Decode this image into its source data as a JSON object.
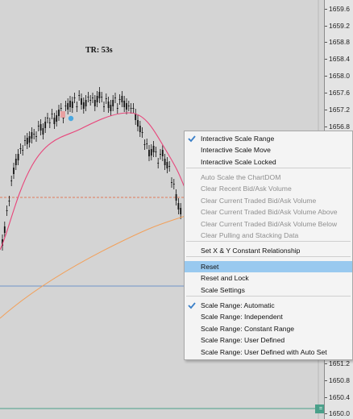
{
  "chart": {
    "timer_label": "TR: 53s",
    "axis_badge": "=",
    "colors": {
      "background": "#d4d4d4",
      "candle": "#111111",
      "ma_fast": "#e8457a",
      "ma_slow": "#f2a05a",
      "dashed_line": "#e07a5a",
      "blue_line": "#6f93c8",
      "green_line": "#4aa08a",
      "grid": "#b9b9b9"
    }
  },
  "price_axis": {
    "ticks": [
      "1659.6",
      "1659.2",
      "1658.8",
      "1658.4",
      "1658.0",
      "1657.6",
      "1657.2",
      "1656.8",
      "1651.2",
      "1650.8",
      "1650.4",
      "1650.0"
    ]
  },
  "context_menu": {
    "items": [
      {
        "label": "Interactive Scale Range",
        "checked": true,
        "disabled": false,
        "highlighted": false
      },
      {
        "label": "Interactive Scale Move",
        "checked": false,
        "disabled": false,
        "highlighted": false
      },
      {
        "label": "Interactive Scale Locked",
        "checked": false,
        "disabled": false,
        "highlighted": false
      },
      {
        "label": "Auto Scale the ChartDOM",
        "checked": false,
        "disabled": true,
        "highlighted": false
      },
      {
        "label": "Clear Recent Bid/Ask Volume",
        "checked": false,
        "disabled": true,
        "highlighted": false
      },
      {
        "label": "Clear Current Traded Bid/Ask Volume",
        "checked": false,
        "disabled": true,
        "highlighted": false
      },
      {
        "label": "Clear Current Traded Bid/Ask Volume Above",
        "checked": false,
        "disabled": true,
        "highlighted": false
      },
      {
        "label": "Clear Current Traded Bid/Ask Volume Below",
        "checked": false,
        "disabled": true,
        "highlighted": false
      },
      {
        "label": "Clear Pulling and Stacking Data",
        "checked": false,
        "disabled": true,
        "highlighted": false
      },
      {
        "label": "Set X & Y Constant Relationship",
        "checked": false,
        "disabled": false,
        "highlighted": false
      },
      {
        "label": "Reset",
        "checked": false,
        "disabled": false,
        "highlighted": true
      },
      {
        "label": "Reset and Lock",
        "checked": false,
        "disabled": false,
        "highlighted": false
      },
      {
        "label": "Scale Settings",
        "checked": false,
        "disabled": false,
        "highlighted": false
      },
      {
        "label": "Scale Range: Automatic",
        "checked": true,
        "disabled": false,
        "highlighted": false
      },
      {
        "label": "Scale Range: Independent",
        "checked": false,
        "disabled": false,
        "highlighted": false
      },
      {
        "label": "Scale Range: Constant Range",
        "checked": false,
        "disabled": false,
        "highlighted": false
      },
      {
        "label": "Scale Range: User Defined",
        "checked": false,
        "disabled": false,
        "highlighted": false
      },
      {
        "label": "Scale Range: User Defined with Auto Set",
        "checked": false,
        "disabled": false,
        "highlighted": false
      }
    ]
  }
}
